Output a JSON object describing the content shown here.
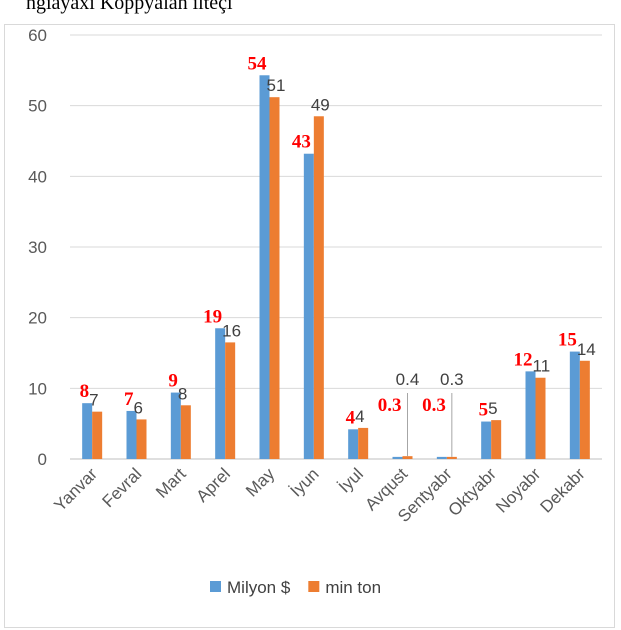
{
  "caption": "ngiayaxi Koppyalah ilteçi",
  "chart_data": {
    "type": "bar",
    "categories": [
      "Yanvar",
      "Fevral",
      "Mart",
      "Aprel",
      "May",
      "İyun",
      "İyul",
      "Avqust",
      "Sentyabr",
      "Oktyabr",
      "Noyabr",
      "Dekabr"
    ],
    "series": [
      {
        "name": "Milyon $",
        "color": "#5b9bd5",
        "values": [
          7.9,
          6.8,
          9.4,
          18.5,
          54.3,
          43.2,
          4.2,
          0.3,
          0.3,
          5.3,
          12.4,
          15.2
        ],
        "labels": [
          "8",
          "7",
          "9",
          "19",
          "54",
          "43",
          "4",
          "0.3",
          "0.3",
          "5",
          "12",
          "15"
        ]
      },
      {
        "name": "min ton",
        "color": "#ed7d31",
        "values": [
          6.7,
          5.6,
          7.6,
          16.5,
          51.2,
          48.5,
          4.4,
          0.4,
          0.3,
          5.5,
          11.5,
          13.9
        ],
        "labels": [
          "7",
          "6",
          "8",
          "16",
          "51",
          "49",
          "4",
          "0.4",
          "0.3",
          "5",
          "11",
          "14"
        ]
      }
    ],
    "y_ticks": [
      "0",
      "10",
      "20",
      "30",
      "40",
      "50",
      "60"
    ],
    "ylim": [
      0,
      60
    ],
    "grid": true,
    "legend_position": "bottom"
  }
}
